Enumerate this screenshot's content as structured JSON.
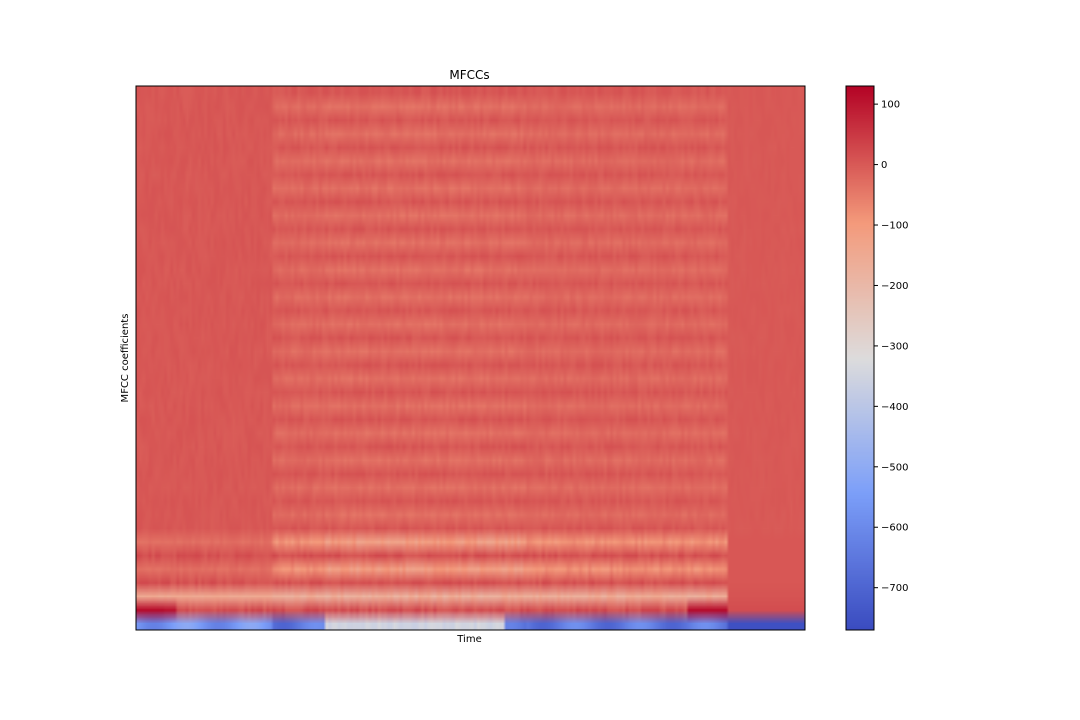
{
  "chart_data": {
    "type": "heatmap",
    "title": "MFCCs",
    "xlabel": "Time",
    "ylabel": "MFCC coefficients",
    "n_coefficients": 40,
    "n_frames": 216,
    "colormap": "coolwarm",
    "value_range": [
      -770,
      130
    ],
    "colorbar": {
      "ticks": [
        100,
        0,
        -100,
        -200,
        -300,
        -400,
        -500,
        -600,
        -700
      ],
      "tick_labels": [
        "100",
        "0",
        "−100",
        "−200",
        "−300",
        "−400",
        "−500",
        "−600",
        "−700"
      ]
    },
    "x_ticks_shown": false,
    "y_ticks_shown": false,
    "grid": false,
    "legend": "none",
    "approximate_profile": {
      "coefficient_0_active_min": -560,
      "coefficient_0_silence": -760,
      "coefficient_1_active": -140,
      "coefficient_1_peaks": 120,
      "higher_coefficients_typical": 0
    }
  },
  "colors": {
    "axes_frame": "#000000",
    "background": "#ffffff"
  }
}
